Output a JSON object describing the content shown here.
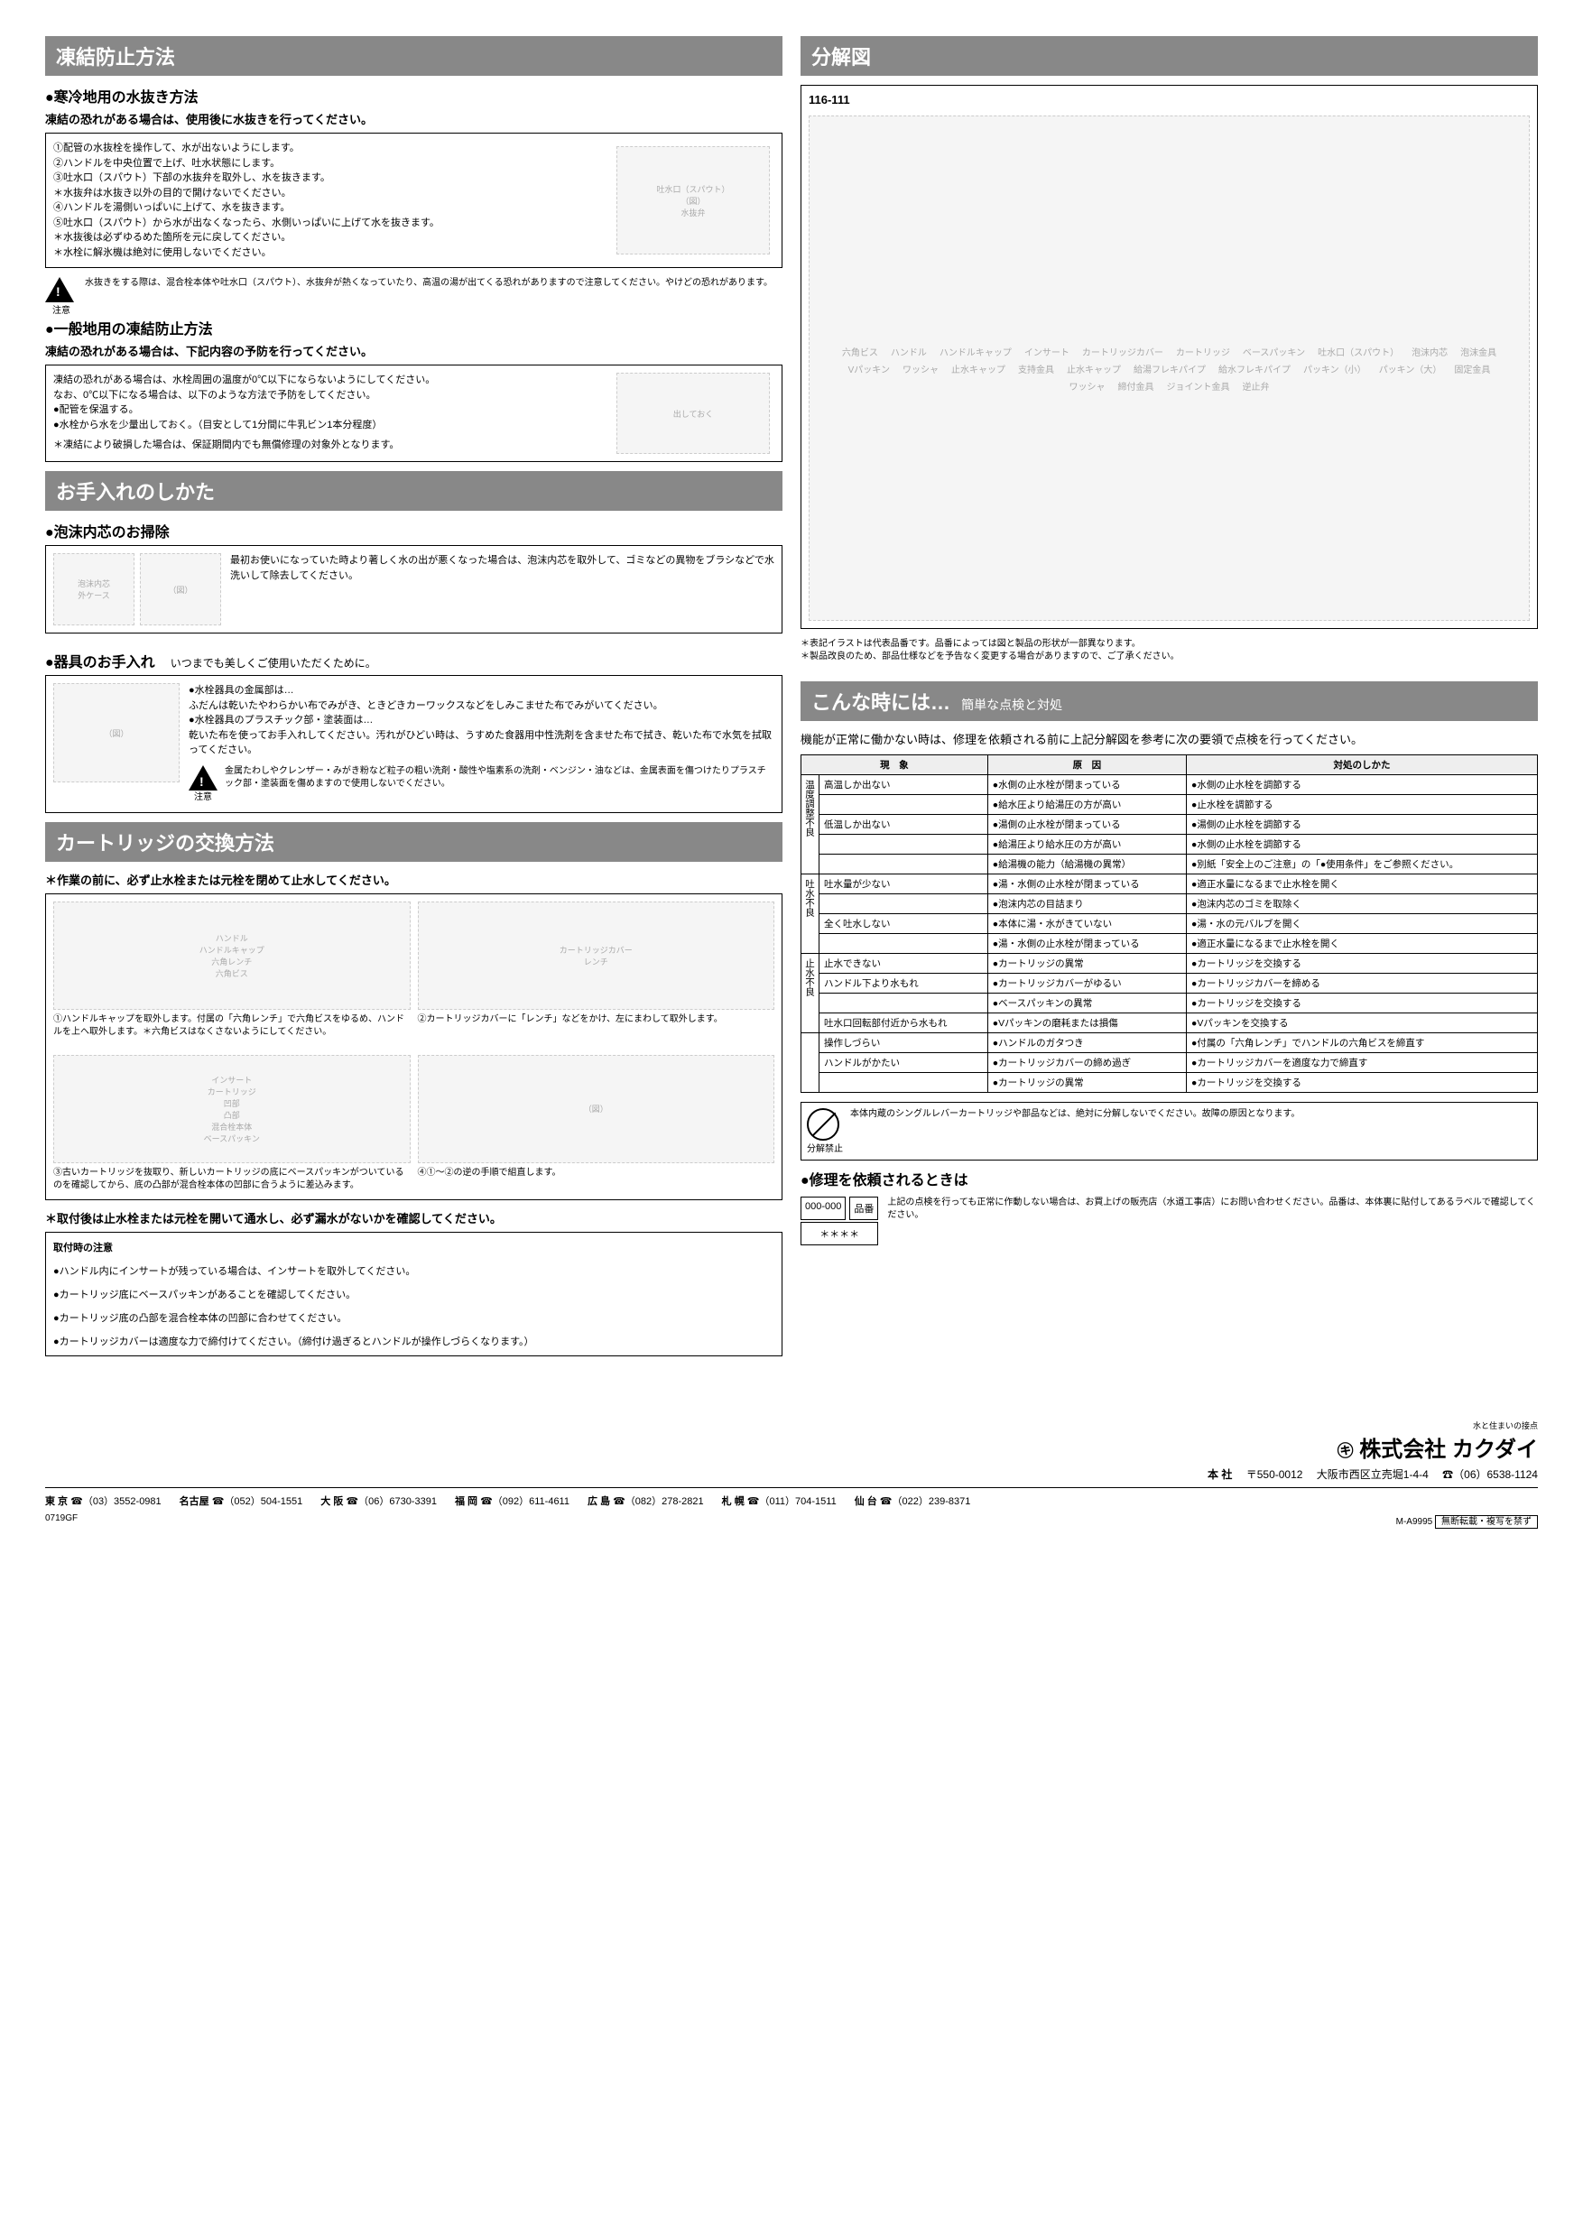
{
  "left": {
    "freeze": {
      "header": "凍結防止方法",
      "cold": {
        "title": "寒冷地用の水抜き方法",
        "lead": "凍結の恐れがある場合は、使用後に水抜きを行ってください。",
        "steps": [
          "①配管の水抜栓を操作して、水が出ないようにします。",
          "②ハンドルを中央位置で上げ、吐水状態にします。",
          "③吐水口（スパウト）下部の水抜弁を取外し、水を抜きます。",
          "＊水抜弁は水抜き以外の目的で開けないでください。",
          "④ハンドルを湯側いっぱいに上げて、水を抜きます。",
          "⑤吐水口（スパウト）から水が出なくなったら、水側いっぱいに上げて水を抜きます。",
          "＊水抜後は必ずゆるめた箇所を元に戻してください。",
          "＊水栓に解氷機は絶対に使用しないでください。"
        ],
        "img_labels": {
          "spout": "吐水口（スパウト）",
          "valve": "水抜弁"
        },
        "warn_label": "注意",
        "warn_text": "水抜きをする際は、混合栓本体や吐水口（スパウト）、水抜弁が熱くなっていたり、高温の湯が出てくる恐れがありますので注意してください。やけどの恐れがあります。"
      },
      "general": {
        "title": "一般地用の凍結防止方法",
        "lead": "凍結の恐れがある場合は、下記内容の予防を行ってください。",
        "body": [
          "凍結の恐れがある場合は、水栓周囲の温度が0℃以下にならないようにしてください。",
          "なお、0℃以下になる場合は、以下のような方法で予防をしてください。",
          "●配管を保温する。",
          "●水栓から水を少量出しておく。（目安として1分間に牛乳ビン1本分程度）"
        ],
        "note": "＊凍結により破損した場合は、保証期間内でも無償修理の対象外となります。",
        "img_label": "出しておく"
      }
    },
    "care": {
      "header": "お手入れのしかた",
      "aerator": {
        "title": "泡沫内芯のお掃除",
        "text": "最初お使いになっていた時より著しく水の出が悪くなった場合は、泡沫内芯を取外して、ゴミなどの異物をブラシなどで水洗いして除去してください。",
        "labels": {
          "core": "泡沫内芯",
          "case": "外ケース"
        }
      },
      "body": {
        "title": "器具のお手入れ",
        "intro": "いつまでも美しくご使用いただくために。",
        "lines": [
          "●水栓器具の金属部は…",
          "ふだんは乾いたやわらかい布でみがき、ときどきカーワックスなどをしみこませた布でみがいてください。",
          "●水栓器具のプラスチック部・塗装面は…",
          "乾いた布を使ってお手入れしてください。汚れがひどい時は、うすめた食器用中性洗剤を含ませた布で拭き、乾いた布で水気を拭取ってください。"
        ],
        "warn_label": "注意",
        "warn_text": "金属たわしやクレンザー・みがき粉など粒子の粗い洗剤・酸性や塩素系の洗剤・ベンジン・油などは、金属表面を傷つけたりプラスチック部・塗装面を傷めますので使用しないでください。"
      }
    },
    "cart": {
      "header": "カートリッジの交換方法",
      "pre": "＊作業の前に、必ず止水栓または元栓を閉めて止水してください。",
      "img1_labels": {
        "handle": "ハンドル",
        "cap": "ハンドルキャップ",
        "wrench": "六角レンチ",
        "screw": "六角ビス"
      },
      "img2_labels": {
        "cover": "カートリッジカバー",
        "tool": "レンチ"
      },
      "step1": "①ハンドルキャップを取外します。付属の「六角レンチ」で六角ビスをゆるめ、ハンドルを上へ取外します。＊六角ビスはなくさないようにしてください。",
      "step2": "②カートリッジカバーに「レンチ」などをかけ、左にまわして取外します。",
      "img3_labels": {
        "concave": "凹部",
        "insert": "インサート",
        "body": "混合栓本体",
        "cartridge": "カートリッジ",
        "packing": "ベースパッキン",
        "convex": "凸部"
      },
      "step3": "③古いカートリッジを抜取り、新しいカートリッジの底にベースパッキンがついているのを確認してから、底の凸部が混合栓本体の凹部に合うように差込みます。",
      "step4": "④①～②の逆の手順で組直します。",
      "post": "＊取付後は止水栓または元栓を開いて通水し、必ず漏水がないかを確認してください。",
      "install_title": "取付時の注意",
      "install_notes": [
        "●ハンドル内にインサートが残っている場合は、インサートを取外してください。",
        "●カートリッジ底にベースパッキンがあることを確認してください。",
        "●カートリッジ底の凸部を混合栓本体の凹部に合わせてください。",
        "●カートリッジカバーは適度な力で締付けてください。（締付け過ぎるとハンドルが操作しづらくなります。）"
      ]
    }
  },
  "right": {
    "exploded": {
      "header": "分解図",
      "model": "116-111",
      "parts": [
        "六角ビス",
        "ハンドル",
        "ハンドルキャップ",
        "インサート",
        "カートリッジカバー",
        "カートリッジ",
        "ベースパッキン",
        "吐水口（スパウト）",
        "泡沫内芯",
        "泡沫金具",
        "Vパッキン",
        "ワッシャ",
        "止水キャップ",
        "支持金具",
        "止水キャップ",
        "給湯フレキパイプ",
        "給水フレキパイプ",
        "パッキン（小）",
        "パッキン（大）",
        "固定金具",
        "ワッシャ",
        "締付金具",
        "ジョイント金具",
        "逆止弁"
      ],
      "notes": [
        "＊表記イラストは代表品番です。品番によっては図と製品の形状が一部異なります。",
        "＊製品改良のため、部品仕様などを予告なく変更する場合がありますので、ご了承ください。"
      ]
    },
    "trouble": {
      "header": "こんな時には…",
      "sub": "簡単な点検と対処",
      "lead": "機能が正常に働かない時は、修理を依頼される前に上記分解図を参考に次の要領で点検を行ってください。",
      "th_symptom": "現　象",
      "th_cause": "原　因",
      "th_action": "対処のしかた",
      "groups": [
        {
          "label": "温度調整不良",
          "rows": [
            {
              "s": "高温しか出ない",
              "c": "●水側の止水栓が閉まっている",
              "a": "●水側の止水栓を調節する"
            },
            {
              "s": "",
              "c": "●給水圧より給湯圧の方が高い",
              "a": "●止水栓を調節する"
            },
            {
              "s": "低温しか出ない",
              "c": "●湯側の止水栓が閉まっている",
              "a": "●湯側の止水栓を調節する"
            },
            {
              "s": "",
              "c": "●給湯圧より給水圧の方が高い",
              "a": "●水側の止水栓を調節する"
            },
            {
              "s": "",
              "c": "●給湯機の能力（給湯機の異常）",
              "a": "●別紙「安全上のご注意」の「●使用条件」をご参照ください。"
            }
          ]
        },
        {
          "label": "吐水不良",
          "rows": [
            {
              "s": "吐水量が少ない",
              "c": "●湯・水側の止水栓が閉まっている",
              "a": "●適正水量になるまで止水栓を開く"
            },
            {
              "s": "",
              "c": "●泡沫内芯の目詰まり",
              "a": "●泡沫内芯のゴミを取除く"
            },
            {
              "s": "全く吐水しない",
              "c": "●本体に湯・水がきていない",
              "a": "●湯・水の元バルブを開く"
            },
            {
              "s": "",
              "c": "●湯・水側の止水栓が閉まっている",
              "a": "●適正水量になるまで止水栓を開く"
            }
          ]
        },
        {
          "label": "止水不良",
          "rows": [
            {
              "s": "止水できない",
              "c": "●カートリッジの異常",
              "a": "●カートリッジを交換する"
            },
            {
              "s": "ハンドル下より水もれ",
              "c": "●カートリッジカバーがゆるい",
              "a": "●カートリッジカバーを締める"
            },
            {
              "s": "",
              "c": "●ベースパッキンの異常",
              "a": "●カートリッジを交換する"
            },
            {
              "s": "吐水口回転部付近から水もれ",
              "c": "●Vパッキンの磨耗または損傷",
              "a": "●Vパッキンを交換する"
            }
          ]
        },
        {
          "label": "",
          "rows": [
            {
              "s": "操作しづらい",
              "c": "●ハンドルのガタつき",
              "a": "●付属の「六角レンチ」でハンドルの六角ビスを締直す"
            },
            {
              "s": "ハンドルがかたい",
              "c": "●カートリッジカバーの締め過ぎ",
              "a": "●カートリッジカバーを適度な力で締直す"
            },
            {
              "s": "",
              "c": "●カートリッジの異常",
              "a": "●カートリッジを交換する"
            }
          ]
        }
      ],
      "prohibit_label": "分解禁止",
      "prohibit_text": "本体内蔵のシングルレバーカートリッジや部品などは、絶対に分解しないでください。故障の原因となります。",
      "repair": {
        "title": "修理を依頼されるときは",
        "tag1": "000-000",
        "tag2": "品番",
        "tag3": "＊＊＊＊",
        "text": "上記の点検を行っても正常に作動しない場合は、お買上げの販売店（水道工事店）にお問い合わせください。品番は、本体裏に貼付してあるラベルで確認してください。"
      }
    }
  },
  "footer": {
    "tagline": "水と住まいの接点",
    "company": "株式会社 カクダイ",
    "hq_label": "本 社",
    "hq_zip": "〒550-0012",
    "hq_addr": "大阪市西区立売堀1-4-4",
    "hq_tel": "☎（06）6538-1124",
    "offices": [
      {
        "city": "東 京",
        "tel": "☎（03）3552-0981"
      },
      {
        "city": "名古屋",
        "tel": "☎（052）504-1551"
      },
      {
        "city": "大 阪",
        "tel": "☎（06）6730-3391"
      },
      {
        "city": "福 岡",
        "tel": "☎（092）611-4611"
      },
      {
        "city": "広 島",
        "tel": "☎（082）278-2821"
      },
      {
        "city": "札 幌",
        "tel": "☎（011）704-1511"
      },
      {
        "city": "仙 台",
        "tel": "☎（022）239-8371"
      }
    ],
    "code_left": "0719GF",
    "code_right": "M-A9995",
    "nocp": "無断転載・複写を禁ず"
  }
}
